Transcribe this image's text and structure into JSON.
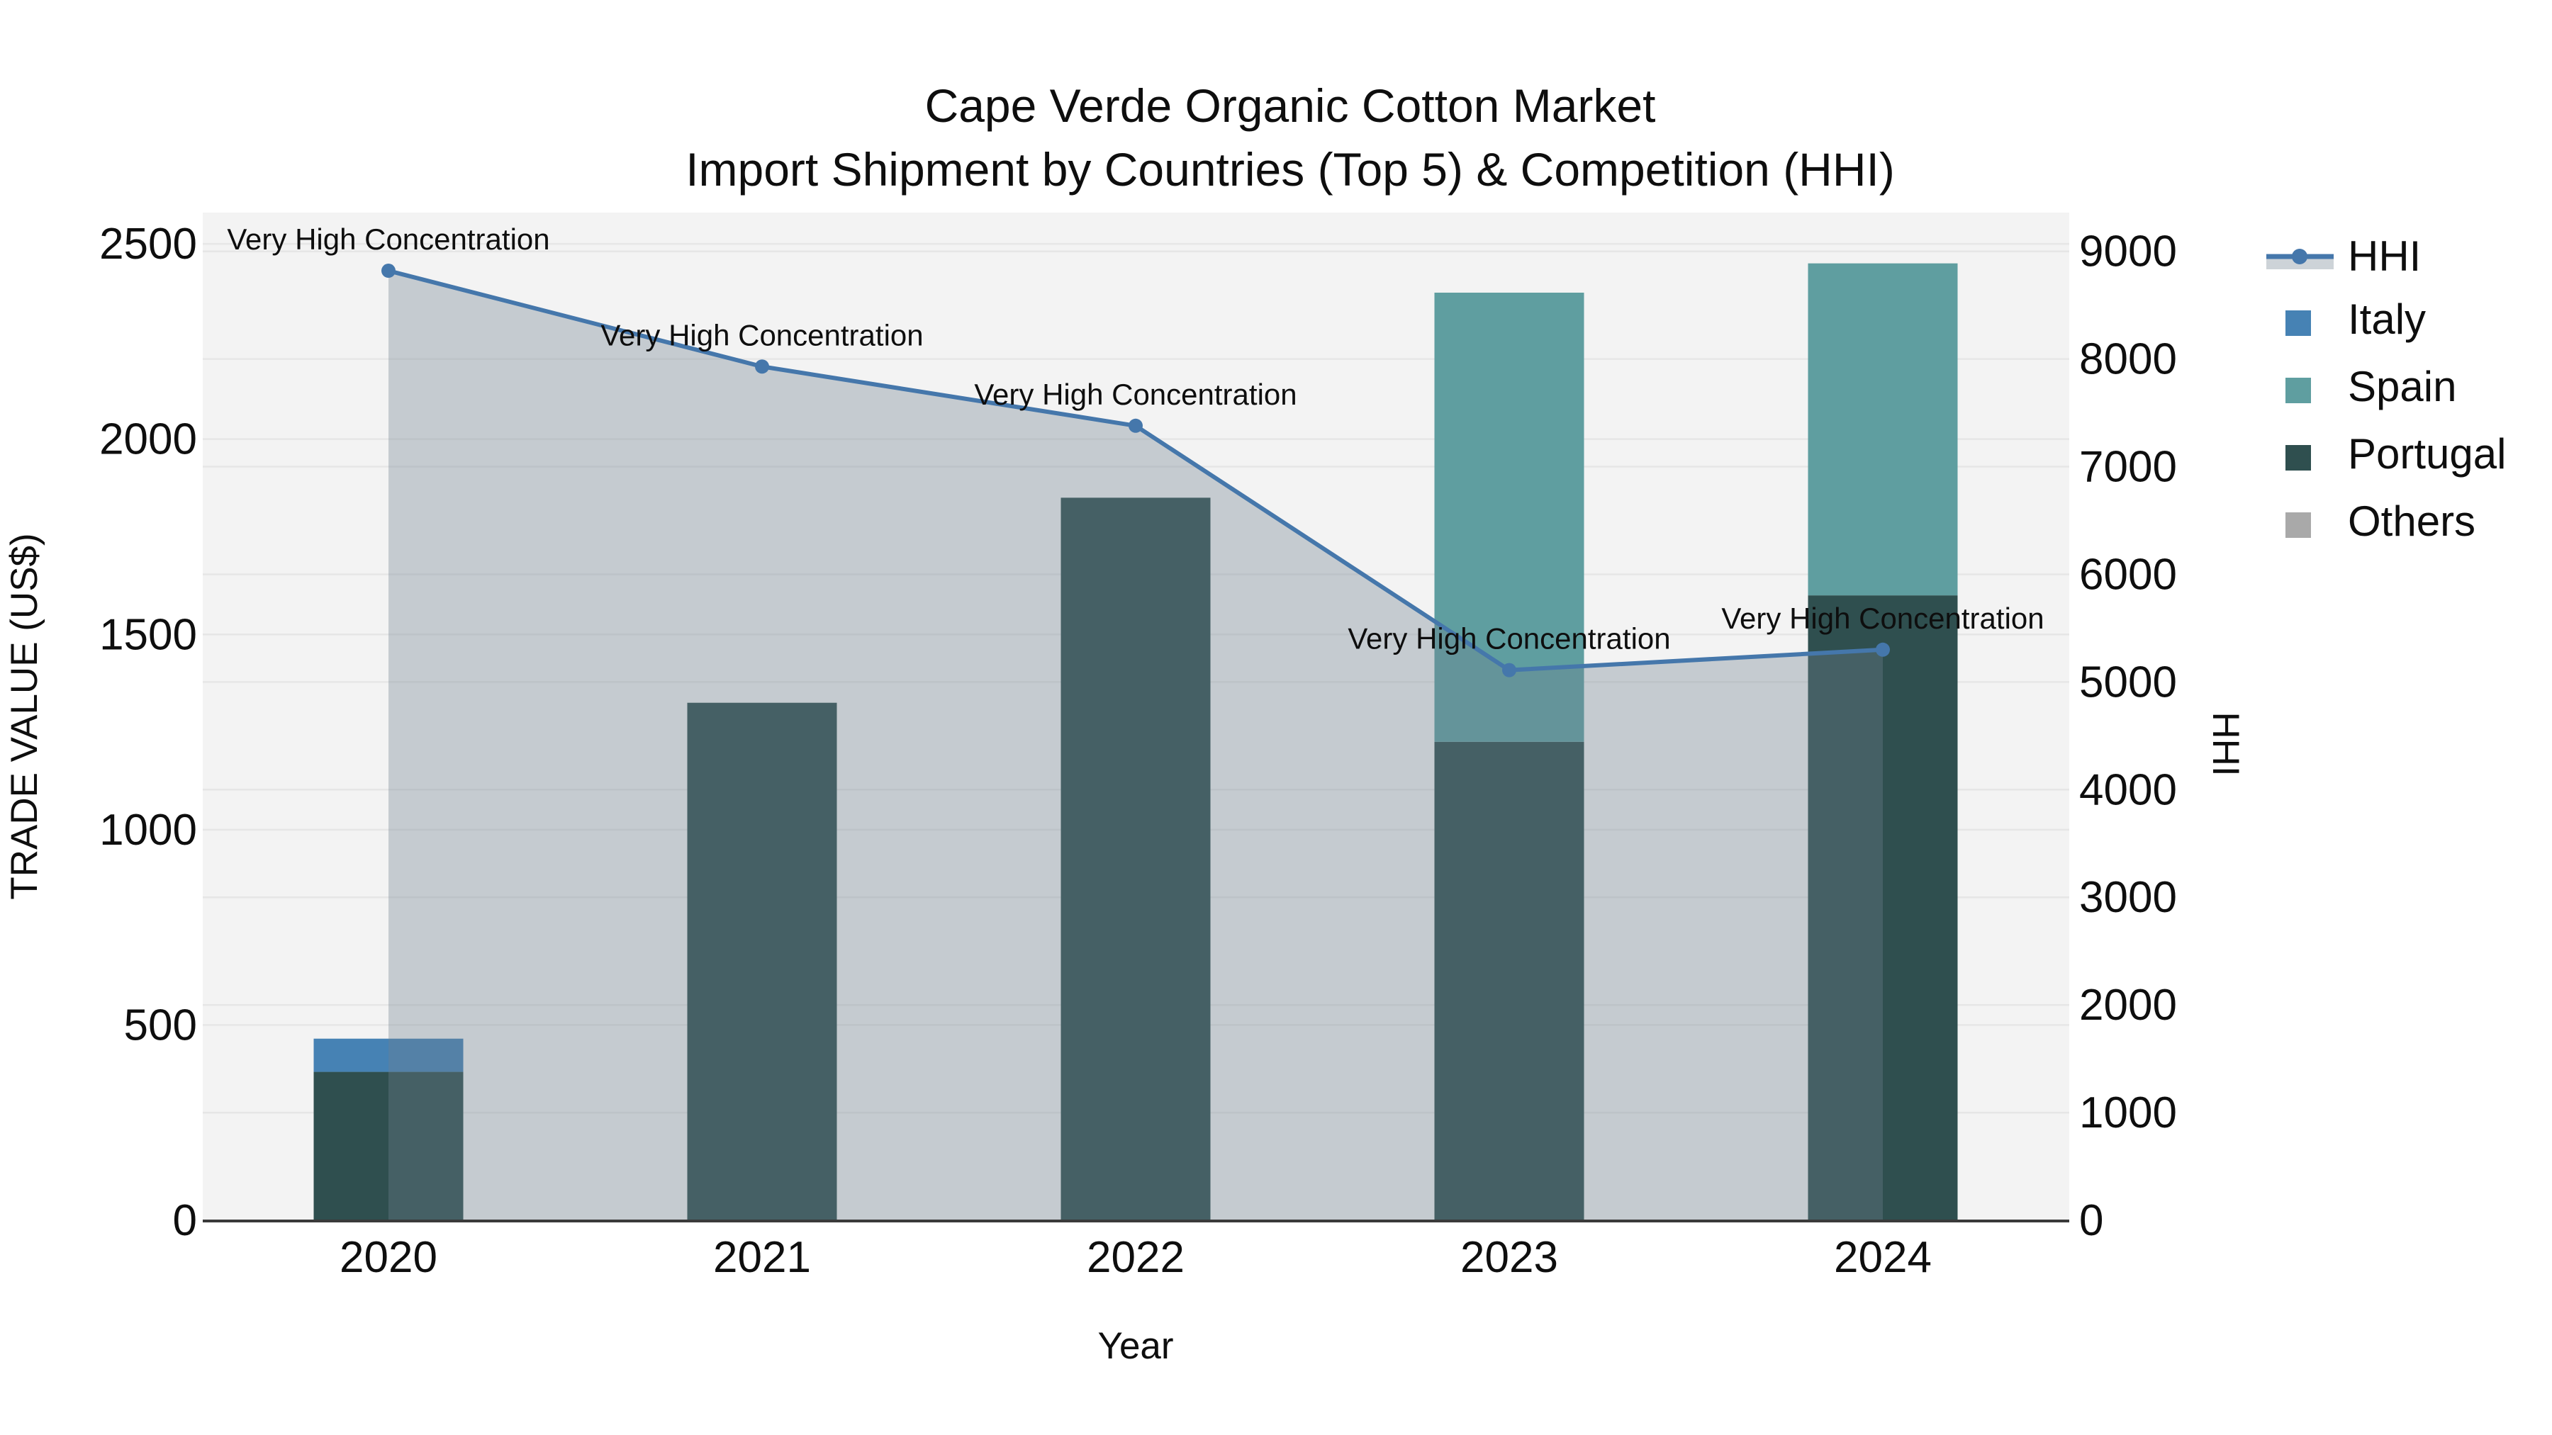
{
  "title": {
    "line1": "Cape Verde Organic Cotton Market",
    "line2": "Import Shipment by Countries (Top 5) & Competition (HHI)"
  },
  "axes": {
    "x_label": "Year",
    "y_left_label": "TRADE VALUE (US$)",
    "y_right_label": "HHI",
    "y_left_ticks": [
      0,
      500,
      1000,
      1500,
      2000,
      2500
    ],
    "y_left_range": [
      0,
      2580
    ],
    "y_right_ticks": [
      0,
      1000,
      2000,
      3000,
      4000,
      5000,
      6000,
      7000,
      8000,
      9000
    ],
    "y_right_range": [
      0,
      9360
    ],
    "grid": true
  },
  "chart_data": {
    "type": "combo-stacked-bar-line",
    "categories": [
      "2020",
      "2021",
      "2022",
      "2023",
      "2024"
    ],
    "stack_order": [
      "Portugal",
      "Spain",
      "Italy",
      "Others"
    ],
    "series": [
      {
        "name": "Italy",
        "type": "bar",
        "axis": "left",
        "color": "#4682b4",
        "values": [
          85,
          0,
          0,
          0,
          0
        ]
      },
      {
        "name": "Spain",
        "type": "bar",
        "axis": "left",
        "color": "#5f9ea0",
        "values": [
          0,
          0,
          0,
          1150,
          850
        ]
      },
      {
        "name": "Portugal",
        "type": "bar",
        "axis": "left",
        "color": "#2f4f4f",
        "values": [
          380,
          1325,
          1850,
          1225,
          1600
        ]
      },
      {
        "name": "Others",
        "type": "bar",
        "axis": "left",
        "color": "#a9a9a9",
        "values": [
          0,
          0,
          0,
          0,
          0
        ]
      },
      {
        "name": "HHI",
        "type": "line",
        "axis": "right",
        "color": "#4577ab",
        "fill_color": "rgba(112,128,144,0.35)",
        "values": [
          8820,
          7930,
          7380,
          5110,
          5300
        ]
      }
    ],
    "annotations": [
      {
        "category": "2020",
        "text": "Very High Concentration"
      },
      {
        "category": "2021",
        "text": "Very High Concentration"
      },
      {
        "category": "2022",
        "text": "Very High Concentration"
      },
      {
        "category": "2023",
        "text": "Very High Concentration"
      },
      {
        "category": "2024",
        "text": "Very High Concentration"
      }
    ],
    "legend_position": "right",
    "legend_entries": [
      "HHI",
      "Italy",
      "Spain",
      "Portugal",
      "Others"
    ]
  },
  "style_colors": {
    "plot_background": "#f3f3f3",
    "grid_line": "#e6e6e6",
    "axis_spine": "#3a3a3a"
  }
}
